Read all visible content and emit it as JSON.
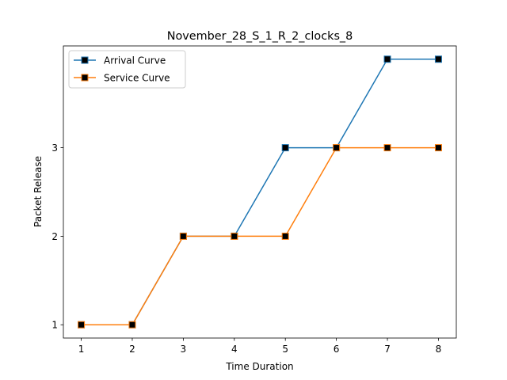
{
  "chart_data": {
    "type": "line",
    "title": "November_28_S_1_R_2_clocks_8",
    "xlabel": "Time Duration",
    "ylabel": "Packet Release",
    "x": [
      1,
      2,
      3,
      4,
      5,
      6,
      7,
      8
    ],
    "xticks": [
      "1",
      "2",
      "3",
      "4",
      "5",
      "6",
      "7",
      "8"
    ],
    "yticks": [
      "1",
      "2",
      "3"
    ],
    "xlim": [
      0.65,
      8.35
    ],
    "ylim": [
      0.85,
      4.15
    ],
    "grid": false,
    "legend_position": "upper-left",
    "series": [
      {
        "name": "Arrival Curve",
        "color": "#1f77b4",
        "values": [
          1,
          1,
          2,
          2,
          3,
          3,
          4,
          4
        ]
      },
      {
        "name": "Service Curve",
        "color": "#ff7f0e",
        "values": [
          1,
          1,
          2,
          2,
          2,
          3,
          3,
          3
        ]
      }
    ],
    "marker": "square",
    "marker_face_color": "#000000"
  }
}
